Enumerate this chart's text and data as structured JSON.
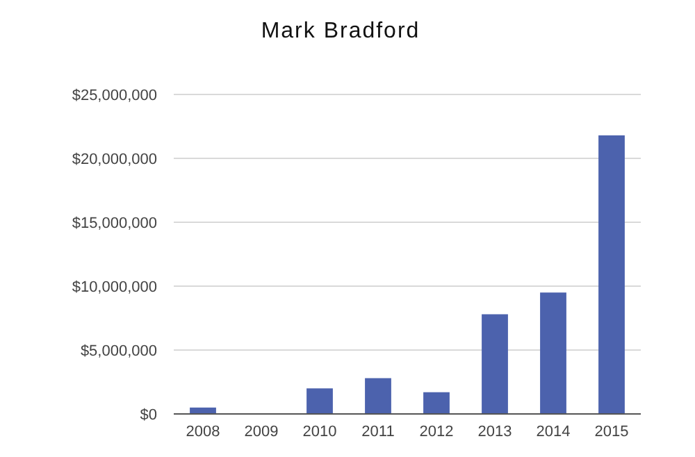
{
  "chart_data": {
    "type": "bar",
    "title": "Mark Bradford",
    "categories": [
      "2008",
      "2009",
      "2010",
      "2011",
      "2012",
      "2013",
      "2014",
      "2015"
    ],
    "values": [
      500000,
      0,
      2000000,
      2800000,
      1700000,
      7800000,
      9500000,
      21800000
    ],
    "color": "#4c62ad",
    "ylim": [
      0,
      25000000
    ],
    "yticks": [
      {
        "value": 0,
        "label": "$0"
      },
      {
        "value": 5000000,
        "label": "$5,000,000"
      },
      {
        "value": 10000000,
        "label": "$10,000,000"
      },
      {
        "value": 15000000,
        "label": "$15,000,000"
      },
      {
        "value": 20000000,
        "label": "$20,000,000"
      },
      {
        "value": 25000000,
        "label": "$25,000,000"
      }
    ],
    "grid": "y"
  }
}
